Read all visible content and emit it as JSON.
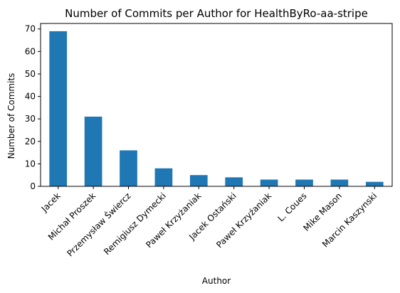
{
  "chart_data": {
    "type": "bar",
    "title": "Number of Commits per Author for HealthByRo-aa-stripe",
    "xlabel": "Author",
    "ylabel": "Number of Commits",
    "categories": [
      "Jacek",
      "Michał Proszek",
      "Przemysław Świercz",
      "Remigiusz Dymecki",
      "Paweł Krzyżaniak",
      "Jacek Ostański",
      "Paweł Krzyźaniak",
      "L. Coues",
      "Mike Mason",
      "Marcin Kaszynski"
    ],
    "values": [
      69,
      31,
      16,
      8,
      5,
      4,
      3,
      3,
      3,
      2
    ],
    "ylim": [
      0,
      72.45
    ],
    "yticks": [
      0,
      10,
      20,
      30,
      40,
      50,
      60,
      70
    ],
    "bar_color": "#1f77b4",
    "grid": false,
    "legend": "none"
  }
}
